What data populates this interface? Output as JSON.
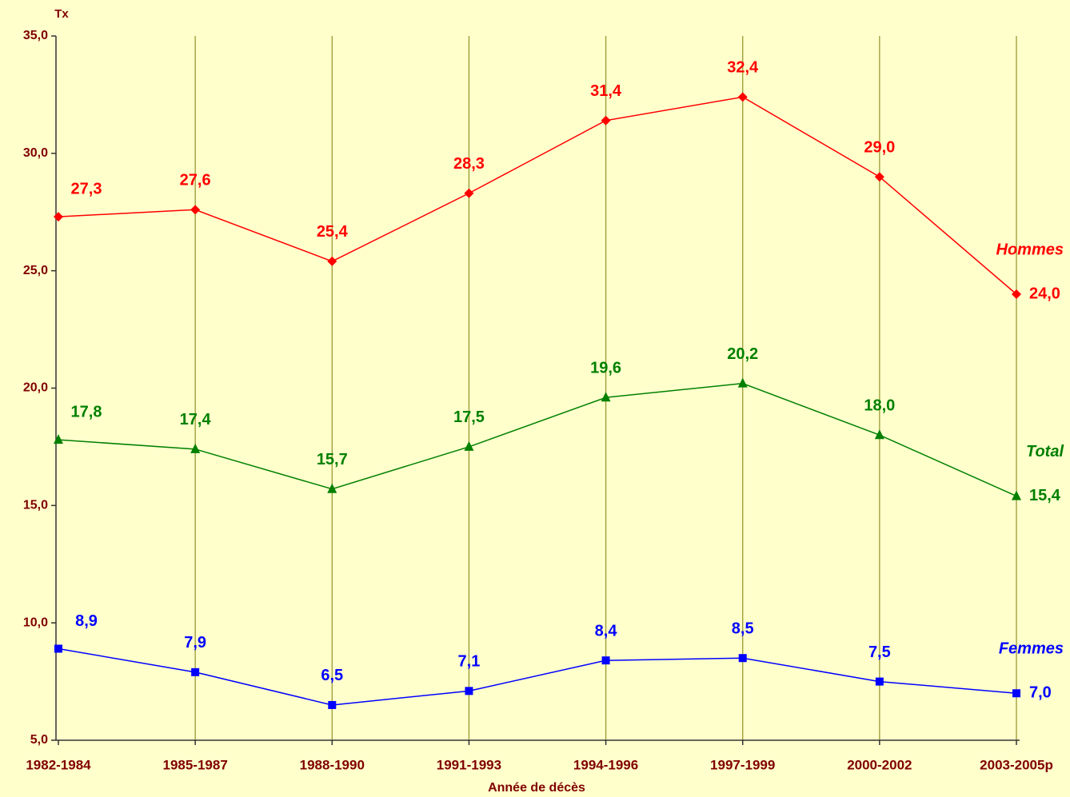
{
  "chart_data": {
    "type": "line",
    "y_label": "Tx",
    "x_label": "Année de décès",
    "categories": [
      "1982-1984",
      "1985-1987",
      "1988-1990",
      "1991-1993",
      "1994-1996",
      "1997-1999",
      "2000-2002",
      "2003-2005p"
    ],
    "ylim": [
      5,
      35
    ],
    "yticks": [
      {
        "value": 5,
        "label": "5,0"
      },
      {
        "value": 10,
        "label": "10,0"
      },
      {
        "value": 15,
        "label": "15,0"
      },
      {
        "value": 20,
        "label": "20,0"
      },
      {
        "value": 25,
        "label": "25,0"
      },
      {
        "value": 30,
        "label": "30,0"
      },
      {
        "value": 35,
        "label": "35,0"
      }
    ],
    "grid": "x",
    "series": [
      {
        "name": "Hommes",
        "color": "#ff0000",
        "marker": "diamond",
        "values": [
          27.3,
          27.6,
          25.4,
          28.3,
          31.4,
          32.4,
          29.0,
          24.0
        ],
        "value_labels": [
          "27,3",
          "27,6",
          "25,4",
          "28,3",
          "31,4",
          "32,4",
          "29,0",
          "24,0"
        ]
      },
      {
        "name": "Total",
        "color": "#008000",
        "marker": "triangle",
        "values": [
          17.8,
          17.4,
          15.7,
          17.5,
          19.6,
          20.2,
          18.0,
          15.4
        ],
        "value_labels": [
          "17,8",
          "17,4",
          "15,7",
          "17,5",
          "19,6",
          "20,2",
          "18,0",
          "15,4"
        ]
      },
      {
        "name": "Femmes",
        "color": "#0000ff",
        "marker": "square",
        "values": [
          8.9,
          7.9,
          6.5,
          7.1,
          8.4,
          8.5,
          7.5,
          7.0
        ],
        "value_labels": [
          "8,9",
          "7,9",
          "6,5",
          "7,1",
          "8,4",
          "8,5",
          "7,5",
          "7,0"
        ]
      }
    ]
  }
}
